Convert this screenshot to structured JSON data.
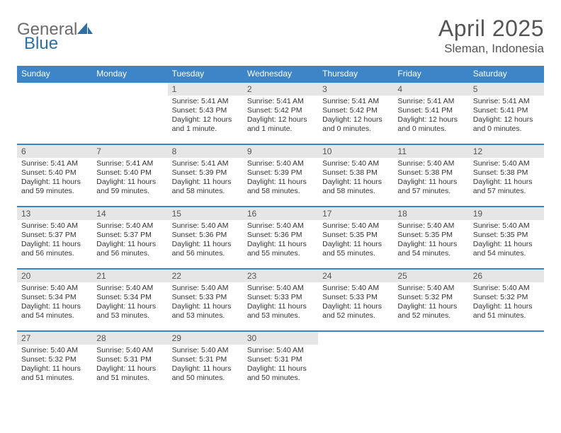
{
  "logo": {
    "word1": "General",
    "word2": "Blue"
  },
  "title": "April 2025",
  "location": "Sleman, Indonesia",
  "colors": {
    "header_bg": "#3d85c6",
    "header_text": "#ffffff",
    "daynum_bg": "#e6e6e6",
    "text": "#333333",
    "border": "#3d85c6"
  },
  "day_headers": [
    "Sunday",
    "Monday",
    "Tuesday",
    "Wednesday",
    "Thursday",
    "Friday",
    "Saturday"
  ],
  "weeks": [
    [
      null,
      null,
      {
        "n": "1",
        "sr": "Sunrise: 5:41 AM",
        "ss": "Sunset: 5:43 PM",
        "dl": "Daylight: 12 hours and 1 minute."
      },
      {
        "n": "2",
        "sr": "Sunrise: 5:41 AM",
        "ss": "Sunset: 5:42 PM",
        "dl": "Daylight: 12 hours and 1 minute."
      },
      {
        "n": "3",
        "sr": "Sunrise: 5:41 AM",
        "ss": "Sunset: 5:42 PM",
        "dl": "Daylight: 12 hours and 0 minutes."
      },
      {
        "n": "4",
        "sr": "Sunrise: 5:41 AM",
        "ss": "Sunset: 5:41 PM",
        "dl": "Daylight: 12 hours and 0 minutes."
      },
      {
        "n": "5",
        "sr": "Sunrise: 5:41 AM",
        "ss": "Sunset: 5:41 PM",
        "dl": "Daylight: 12 hours and 0 minutes."
      }
    ],
    [
      {
        "n": "6",
        "sr": "Sunrise: 5:41 AM",
        "ss": "Sunset: 5:40 PM",
        "dl": "Daylight: 11 hours and 59 minutes."
      },
      {
        "n": "7",
        "sr": "Sunrise: 5:41 AM",
        "ss": "Sunset: 5:40 PM",
        "dl": "Daylight: 11 hours and 59 minutes."
      },
      {
        "n": "8",
        "sr": "Sunrise: 5:41 AM",
        "ss": "Sunset: 5:39 PM",
        "dl": "Daylight: 11 hours and 58 minutes."
      },
      {
        "n": "9",
        "sr": "Sunrise: 5:40 AM",
        "ss": "Sunset: 5:39 PM",
        "dl": "Daylight: 11 hours and 58 minutes."
      },
      {
        "n": "10",
        "sr": "Sunrise: 5:40 AM",
        "ss": "Sunset: 5:38 PM",
        "dl": "Daylight: 11 hours and 58 minutes."
      },
      {
        "n": "11",
        "sr": "Sunrise: 5:40 AM",
        "ss": "Sunset: 5:38 PM",
        "dl": "Daylight: 11 hours and 57 minutes."
      },
      {
        "n": "12",
        "sr": "Sunrise: 5:40 AM",
        "ss": "Sunset: 5:38 PM",
        "dl": "Daylight: 11 hours and 57 minutes."
      }
    ],
    [
      {
        "n": "13",
        "sr": "Sunrise: 5:40 AM",
        "ss": "Sunset: 5:37 PM",
        "dl": "Daylight: 11 hours and 56 minutes."
      },
      {
        "n": "14",
        "sr": "Sunrise: 5:40 AM",
        "ss": "Sunset: 5:37 PM",
        "dl": "Daylight: 11 hours and 56 minutes."
      },
      {
        "n": "15",
        "sr": "Sunrise: 5:40 AM",
        "ss": "Sunset: 5:36 PM",
        "dl": "Daylight: 11 hours and 56 minutes."
      },
      {
        "n": "16",
        "sr": "Sunrise: 5:40 AM",
        "ss": "Sunset: 5:36 PM",
        "dl": "Daylight: 11 hours and 55 minutes."
      },
      {
        "n": "17",
        "sr": "Sunrise: 5:40 AM",
        "ss": "Sunset: 5:35 PM",
        "dl": "Daylight: 11 hours and 55 minutes."
      },
      {
        "n": "18",
        "sr": "Sunrise: 5:40 AM",
        "ss": "Sunset: 5:35 PM",
        "dl": "Daylight: 11 hours and 54 minutes."
      },
      {
        "n": "19",
        "sr": "Sunrise: 5:40 AM",
        "ss": "Sunset: 5:35 PM",
        "dl": "Daylight: 11 hours and 54 minutes."
      }
    ],
    [
      {
        "n": "20",
        "sr": "Sunrise: 5:40 AM",
        "ss": "Sunset: 5:34 PM",
        "dl": "Daylight: 11 hours and 54 minutes."
      },
      {
        "n": "21",
        "sr": "Sunrise: 5:40 AM",
        "ss": "Sunset: 5:34 PM",
        "dl": "Daylight: 11 hours and 53 minutes."
      },
      {
        "n": "22",
        "sr": "Sunrise: 5:40 AM",
        "ss": "Sunset: 5:33 PM",
        "dl": "Daylight: 11 hours and 53 minutes."
      },
      {
        "n": "23",
        "sr": "Sunrise: 5:40 AM",
        "ss": "Sunset: 5:33 PM",
        "dl": "Daylight: 11 hours and 53 minutes."
      },
      {
        "n": "24",
        "sr": "Sunrise: 5:40 AM",
        "ss": "Sunset: 5:33 PM",
        "dl": "Daylight: 11 hours and 52 minutes."
      },
      {
        "n": "25",
        "sr": "Sunrise: 5:40 AM",
        "ss": "Sunset: 5:32 PM",
        "dl": "Daylight: 11 hours and 52 minutes."
      },
      {
        "n": "26",
        "sr": "Sunrise: 5:40 AM",
        "ss": "Sunset: 5:32 PM",
        "dl": "Daylight: 11 hours and 51 minutes."
      }
    ],
    [
      {
        "n": "27",
        "sr": "Sunrise: 5:40 AM",
        "ss": "Sunset: 5:32 PM",
        "dl": "Daylight: 11 hours and 51 minutes."
      },
      {
        "n": "28",
        "sr": "Sunrise: 5:40 AM",
        "ss": "Sunset: 5:31 PM",
        "dl": "Daylight: 11 hours and 51 minutes."
      },
      {
        "n": "29",
        "sr": "Sunrise: 5:40 AM",
        "ss": "Sunset: 5:31 PM",
        "dl": "Daylight: 11 hours and 50 minutes."
      },
      {
        "n": "30",
        "sr": "Sunrise: 5:40 AM",
        "ss": "Sunset: 5:31 PM",
        "dl": "Daylight: 11 hours and 50 minutes."
      },
      null,
      null,
      null
    ]
  ]
}
